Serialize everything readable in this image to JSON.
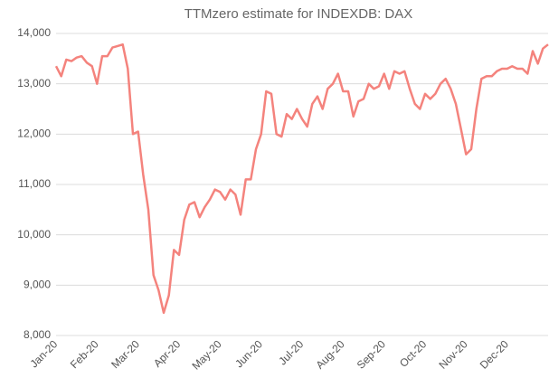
{
  "chart_data": {
    "type": "line",
    "title": "TTMzero estimate for INDEXDB: DAX",
    "categories": [
      "Jan-20",
      null,
      null,
      null,
      null,
      null,
      null,
      null,
      "Feb-20",
      null,
      null,
      null,
      null,
      null,
      null,
      null,
      "Mar-20",
      null,
      null,
      null,
      null,
      null,
      null,
      null,
      "Apr-20",
      null,
      null,
      null,
      null,
      null,
      null,
      null,
      "May-20",
      null,
      null,
      null,
      null,
      null,
      null,
      null,
      "Jun-20",
      null,
      null,
      null,
      null,
      null,
      null,
      null,
      "Jul-20",
      null,
      null,
      null,
      null,
      null,
      null,
      null,
      "Aug-20",
      null,
      null,
      null,
      null,
      null,
      null,
      null,
      "Sep-20",
      null,
      null,
      null,
      null,
      null,
      null,
      null,
      "Oct-20",
      null,
      null,
      null,
      null,
      null,
      null,
      null,
      "Nov-20",
      null,
      null,
      null,
      null,
      null,
      null,
      null,
      "Dec-20",
      null,
      null,
      null,
      null,
      null,
      null,
      null,
      null
    ],
    "series": [
      {
        "name": "DAX",
        "color": "#f4837d",
        "values": [
          13350,
          13150,
          13480,
          13450,
          13520,
          13550,
          13420,
          13350,
          13000,
          13550,
          13550,
          13720,
          13750,
          13780,
          13300,
          12000,
          12050,
          11200,
          10500,
          9200,
          8900,
          8450,
          8800,
          9700,
          9600,
          10300,
          10600,
          10650,
          10350,
          10550,
          10700,
          10900,
          10850,
          10700,
          10900,
          10800,
          10400,
          11100,
          11100,
          11700,
          12000,
          12850,
          12800,
          12000,
          11950,
          12400,
          12300,
          12500,
          12300,
          12150,
          12600,
          12750,
          12500,
          12900,
          13000,
          13200,
          12850,
          12850,
          12350,
          12650,
          12700,
          13000,
          12900,
          12950,
          13200,
          12900,
          13250,
          13200,
          13250,
          12900,
          12600,
          12500,
          12800,
          12700,
          12800,
          13000,
          13100,
          12900,
          12600,
          12100,
          11600,
          11700,
          12500,
          13100,
          13150,
          13150,
          13250,
          13300,
          13300,
          13350,
          13300,
          13300,
          13200,
          13650,
          13400,
          13700,
          13780
        ]
      }
    ],
    "ylim": [
      8000,
      14000
    ],
    "yticks": [
      {
        "value": 8000,
        "label": "8,000"
      },
      {
        "value": 9000,
        "label": "9,000"
      },
      {
        "value": 10000,
        "label": "10,000"
      },
      {
        "value": 11000,
        "label": "11,000"
      },
      {
        "value": 12000,
        "label": "12,000"
      },
      {
        "value": 13000,
        "label": "13,000"
      },
      {
        "value": 14000,
        "label": "14,000"
      }
    ],
    "grid": true
  }
}
